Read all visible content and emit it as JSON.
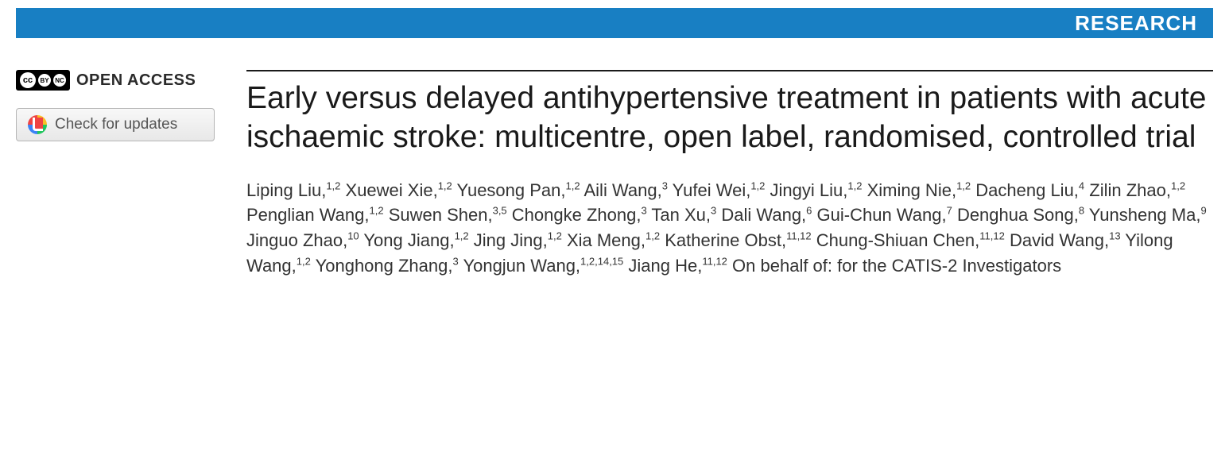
{
  "banner": {
    "label": "RESEARCH",
    "bg_color": "#187fc3",
    "text_color": "#ffffff"
  },
  "sidebar": {
    "open_access_label": "OPEN ACCESS",
    "cc_main": "cc",
    "cc_by": "BY",
    "cc_nc": "NC",
    "updates_label": "Check for updates"
  },
  "article": {
    "title": "Early versus delayed antihypertensive treatment in patients with acute ischaemic stroke: multicentre, open label, randomised, controlled trial",
    "authors": [
      {
        "name": "Liping Liu",
        "aff": "1,2"
      },
      {
        "name": "Xuewei Xie",
        "aff": "1,2"
      },
      {
        "name": "Yuesong Pan",
        "aff": "1,2"
      },
      {
        "name": "Aili Wang",
        "aff": "3"
      },
      {
        "name": "Yufei Wei",
        "aff": "1,2"
      },
      {
        "name": "Jingyi Liu",
        "aff": "1,2"
      },
      {
        "name": "Ximing Nie",
        "aff": "1,2"
      },
      {
        "name": "Dacheng Liu",
        "aff": "4"
      },
      {
        "name": "Zilin Zhao",
        "aff": "1,2"
      },
      {
        "name": "Penglian Wang",
        "aff": "1,2"
      },
      {
        "name": "Suwen Shen",
        "aff": "3,5"
      },
      {
        "name": "Chongke Zhong",
        "aff": "3"
      },
      {
        "name": "Tan Xu",
        "aff": "3"
      },
      {
        "name": "Dali Wang",
        "aff": "6"
      },
      {
        "name": "Gui-Chun Wang",
        "aff": "7"
      },
      {
        "name": "Denghua Song",
        "aff": "8"
      },
      {
        "name": "Yunsheng Ma",
        "aff": "9"
      },
      {
        "name": "Jinguo Zhao",
        "aff": "10"
      },
      {
        "name": "Yong Jiang",
        "aff": "1,2"
      },
      {
        "name": "Jing Jing",
        "aff": "1,2"
      },
      {
        "name": "Xia Meng",
        "aff": "1,2"
      },
      {
        "name": "Katherine Obst",
        "aff": "11,12"
      },
      {
        "name": "Chung-Shiuan Chen",
        "aff": "11,12"
      },
      {
        "name": "David Wang",
        "aff": "13"
      },
      {
        "name": "Yilong Wang",
        "aff": "1,2"
      },
      {
        "name": "Yonghong Zhang",
        "aff": "3"
      },
      {
        "name": "Yongjun Wang",
        "aff": "1,2,14,15"
      },
      {
        "name": "Jiang He",
        "aff": "11,12"
      }
    ],
    "on_behalf": "On behalf of: for the CATIS-2 Investigators"
  }
}
